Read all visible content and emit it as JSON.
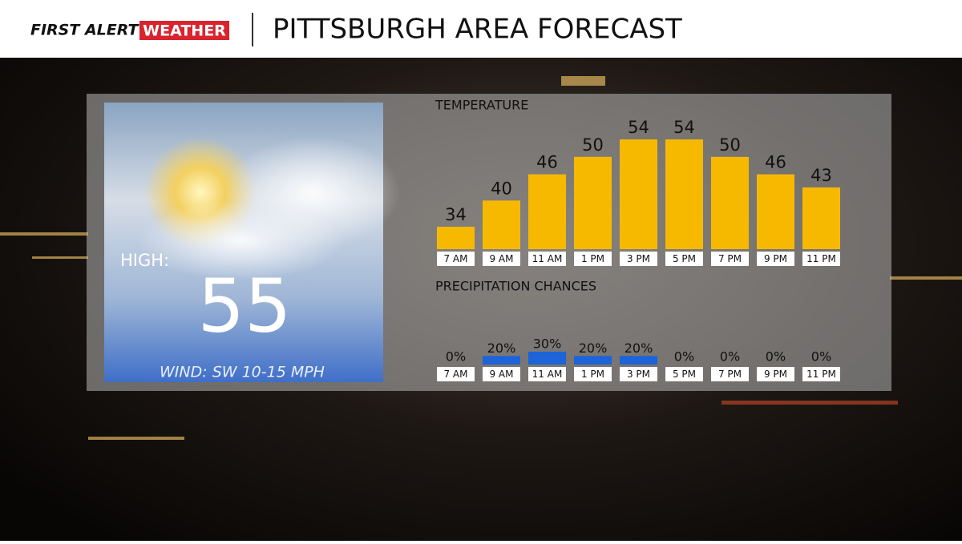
{
  "header": {
    "logo_first": "FIRST ALERT",
    "logo_weather": "WEATHER",
    "title": "PITTSBURGH AREA FORECAST"
  },
  "panel": {
    "high_label": "HIGH:",
    "high_value": 55,
    "wind": "WIND: SW 10-15 MPH"
  },
  "chart_data": [
    {
      "type": "bar",
      "title": "TEMPERATURE",
      "categories": [
        "7 AM",
        "9 AM",
        "11 AM",
        "1 PM",
        "3 PM",
        "5 PM",
        "7 PM",
        "9 PM",
        "11 PM"
      ],
      "values": [
        34,
        40,
        46,
        50,
        54,
        54,
        50,
        46,
        43
      ],
      "color": "#f7b900"
    },
    {
      "type": "bar",
      "title": "PRECIPITATION CHANCES",
      "categories": [
        "7 AM",
        "9 AM",
        "11 AM",
        "1 PM",
        "3 PM",
        "5 PM",
        "7 PM",
        "9 PM",
        "11 PM"
      ],
      "values": [
        0,
        20,
        30,
        20,
        20,
        0,
        0,
        0,
        0
      ],
      "value_labels": [
        "0%",
        "20%",
        "30%",
        "20%",
        "20%",
        "0%",
        "0%",
        "0%",
        "0%"
      ],
      "color": "#1c64d8"
    }
  ]
}
